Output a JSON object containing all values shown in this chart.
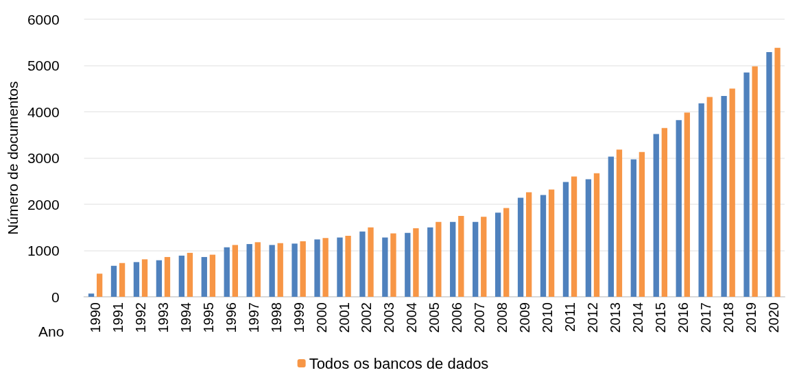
{
  "chart_data": {
    "type": "bar",
    "xlabel": "Ano",
    "ylabel": "Número de documentos",
    "categories": [
      "1990",
      "1991",
      "1992",
      "1993",
      "1994",
      "1995",
      "1996",
      "1997",
      "1998",
      "1999",
      "2000",
      "2001",
      "2002",
      "2003",
      "2004",
      "2005",
      "2006",
      "2007",
      "2008",
      "2009",
      "2010",
      "2011",
      "2012",
      "2013",
      "2014",
      "2015",
      "2016",
      "2017",
      "2018",
      "2019",
      "2020"
    ],
    "series": [
      {
        "color": "#4f81bd",
        "values": [
          70,
          670,
          750,
          790,
          890,
          860,
          1070,
          1140,
          1120,
          1150,
          1240,
          1280,
          1410,
          1280,
          1380,
          1500,
          1620,
          1620,
          1820,
          2140,
          2200,
          2480,
          2540,
          3030,
          2970,
          3520,
          3820,
          4180,
          4340,
          4850,
          5290
        ]
      },
      {
        "name": "Todos os bancos de dados",
        "color": "#f79646",
        "values": [
          500,
          730,
          810,
          860,
          950,
          910,
          1120,
          1180,
          1160,
          1200,
          1270,
          1320,
          1500,
          1370,
          1480,
          1620,
          1750,
          1730,
          1920,
          2260,
          2320,
          2600,
          2670,
          3180,
          3130,
          3650,
          3980,
          4320,
          4500,
          4980,
          5380
        ]
      }
    ],
    "ylim": [
      0,
      6000
    ],
    "yticks": [
      0,
      1000,
      2000,
      3000,
      4000,
      5000,
      6000
    ],
    "grid": "y",
    "legend": "bottom"
  }
}
